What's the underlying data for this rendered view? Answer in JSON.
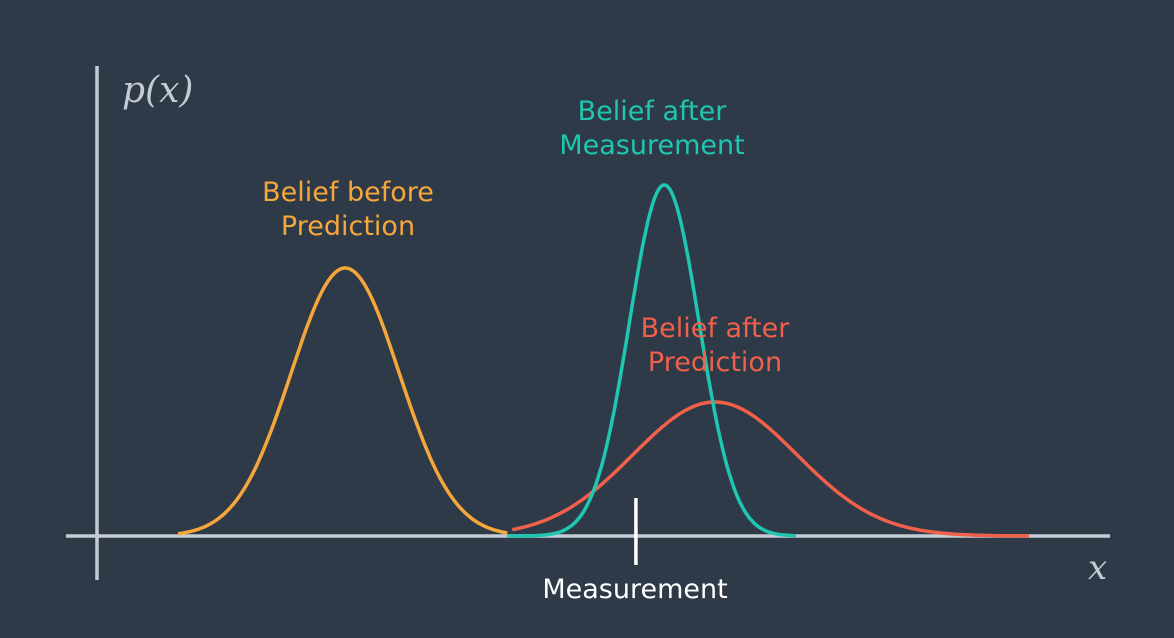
{
  "axes": {
    "y_label": "p(x)",
    "x_label": "x"
  },
  "labels": {
    "before_prediction": [
      "Belief before",
      "Prediction"
    ],
    "after_measurement": [
      "Belief after",
      "Measurement"
    ],
    "after_prediction": [
      "Belief after",
      "Prediction"
    ],
    "measurement": "Measurement"
  },
  "colors": {
    "background": "#2e3a48",
    "axis": "#c5cbd3",
    "before_prediction": "#f5a73b",
    "after_measurement": "#1fc7b0",
    "after_prediction": "#f0604a",
    "measurement_marker": "#ffffff"
  },
  "curves": {
    "before_prediction": {
      "mean": 0.245,
      "sd": 0.0535,
      "height": 1.0
    },
    "after_measurement": {
      "mean": 0.56,
      "sd": 0.0345,
      "height": 1.31
    },
    "after_prediction": {
      "mean": 0.61,
      "sd": 0.081,
      "height": 0.5
    }
  },
  "measurement_value": 0.532
}
